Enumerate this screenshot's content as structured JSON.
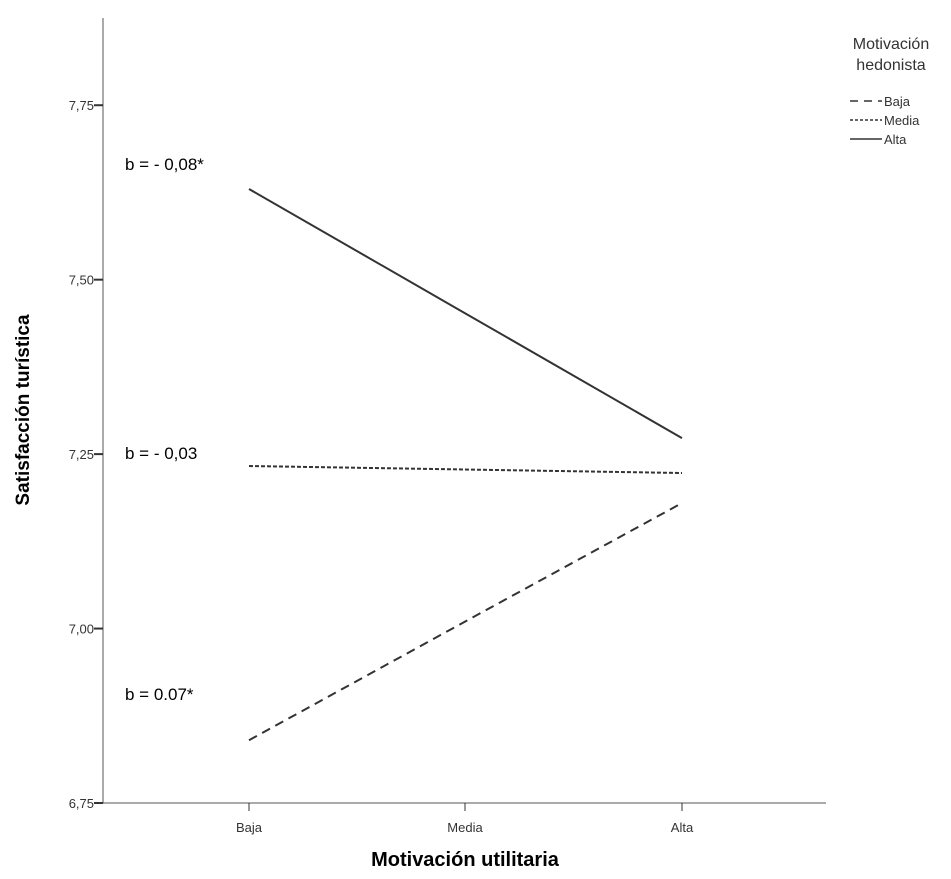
{
  "chart_data": {
    "type": "line",
    "xlabel": "Motivación utilitaria",
    "ylabel": "Satisfacción turística",
    "categories": [
      "Baja",
      "Media",
      "Alta"
    ],
    "ylim": [
      6.75,
      7.875
    ],
    "yticks": [
      "6,75",
      "7,00",
      "7,25",
      "7,50",
      "7,75"
    ],
    "ytick_values": [
      6.75,
      7.0,
      7.25,
      7.5,
      7.75
    ],
    "grid": false,
    "legend": {
      "title_lines": [
        "Motivación",
        "hedonista"
      ],
      "placement": "top-right"
    },
    "series": [
      {
        "name": "Baja",
        "dash": "long-dash",
        "values": [
          6.84,
          7.01,
          7.18
        ]
      },
      {
        "name": "Media",
        "dash": "short-dash",
        "values": [
          7.233,
          7.228,
          7.223
        ]
      },
      {
        "name": "Alta",
        "dash": "solid",
        "values": [
          7.63,
          7.452,
          7.273
        ]
      }
    ],
    "annotations": [
      {
        "text": "b = - 0,08*",
        "series": "Alta"
      },
      {
        "text": "b = - 0,03",
        "series": "Media"
      },
      {
        "text": "b = 0.07*",
        "series": "Baja"
      }
    ]
  }
}
